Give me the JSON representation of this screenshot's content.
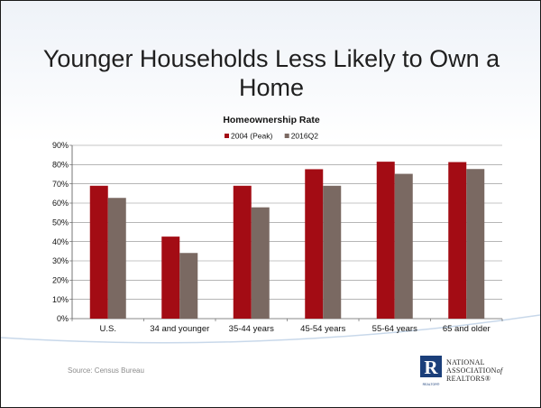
{
  "slide": {
    "title": "Younger Households Less Likely to Own a Home",
    "source": "Source: Census Bureau",
    "logo": {
      "line1": "NATIONAL",
      "line2": "ASSOCIATION",
      "line2_suffix": "of",
      "line3": "REALTORS®",
      "mark_letter": "R",
      "mark_sub": "REALTOR®"
    }
  },
  "colors": {
    "series_2004": "#a30c14",
    "series_2016": "#7a6962",
    "logo_blue": "#1b3f7a",
    "swoosh": "#c8d8ea"
  },
  "chart_data": {
    "type": "bar",
    "title": "Homeownership Rate",
    "categories": [
      "U.S.",
      "34 and younger",
      "35-44 years",
      "45-54 years",
      "55-64 years",
      "65 and older"
    ],
    "series": [
      {
        "name": "2004 (Peak)",
        "values": [
          69.0,
          42.6,
          69.0,
          77.6,
          81.5,
          81.3
        ]
      },
      {
        "name": "2016Q2",
        "values": [
          62.7,
          34.1,
          57.8,
          69.0,
          75.2,
          77.7
        ]
      }
    ],
    "ylim": [
      0,
      90
    ],
    "yticks": [
      "0%",
      "10%",
      "20%",
      "30%",
      "40%",
      "50%",
      "60%",
      "70%",
      "80%",
      "90%"
    ],
    "grid": true,
    "legend": "top-center"
  }
}
